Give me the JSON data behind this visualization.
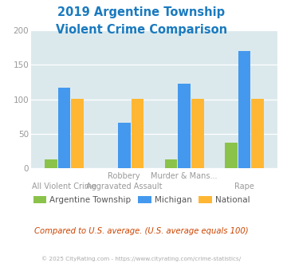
{
  "title_line1": "2019 Argentine Township",
  "title_line2": "Violent Crime Comparison",
  "series": {
    "Argentine Township": [
      13,
      0,
      13,
      37
    ],
    "Michigan": [
      117,
      66,
      123,
      170
    ],
    "National": [
      101,
      101,
      101,
      101
    ]
  },
  "colors": {
    "Argentine Township": "#8bc34a",
    "Michigan": "#4499ee",
    "National": "#ffb733"
  },
  "top_labels": [
    "",
    "Robbery",
    "Murder & Mans...",
    ""
  ],
  "bottom_labels": [
    "All Violent Crime",
    "Aggravated Assault",
    "",
    "Rape"
  ],
  "ylim": [
    0,
    200
  ],
  "yticks": [
    0,
    50,
    100,
    150,
    200
  ],
  "bar_width": 0.22,
  "plot_bg_color": "#dce9ec",
  "fig_bg_color": "#ffffff",
  "title_color": "#1a7abf",
  "tick_label_color": "#999999",
  "legend_label_color": "#555555",
  "subtitle_color": "#cc4400",
  "footer_color": "#aaaaaa",
  "subtitle_text": "Compared to U.S. average. (U.S. average equals 100)",
  "footer_text": "© 2025 CityRating.com - https://www.cityrating.com/crime-statistics/"
}
